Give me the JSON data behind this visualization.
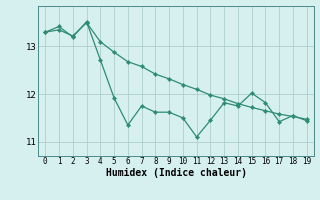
{
  "x": [
    0,
    1,
    2,
    3,
    4,
    5,
    6,
    7,
    8,
    9,
    10,
    11,
    12,
    13,
    14,
    15,
    16,
    17,
    18,
    19
  ],
  "line1": [
    13.3,
    13.42,
    13.2,
    13.52,
    12.72,
    11.92,
    11.35,
    11.75,
    11.62,
    11.62,
    11.5,
    11.1,
    11.45,
    11.82,
    11.75,
    12.02,
    11.82,
    11.42,
    11.55,
    11.44
  ],
  "line2": [
    13.3,
    13.35,
    13.22,
    13.5,
    13.1,
    12.88,
    12.68,
    12.58,
    12.42,
    12.32,
    12.2,
    12.1,
    11.98,
    11.9,
    11.8,
    11.72,
    11.65,
    11.58,
    11.53,
    11.47
  ],
  "line_color": "#2e8b74",
  "bg_color": "#d6f0f0",
  "grid_color": "#b0cece",
  "xlabel": "Humidex (Indice chaleur)",
  "yticks": [
    11,
    12,
    13
  ],
  "xtick_labels": [
    "0",
    "1",
    "2",
    "3",
    "4",
    "5",
    "6",
    "7",
    "8",
    "9",
    "10",
    "11",
    "12",
    "13",
    "14",
    "15",
    "16",
    "17",
    "18",
    "19"
  ],
  "xlim": [
    -0.5,
    19.5
  ],
  "ylim": [
    10.7,
    13.85
  ]
}
